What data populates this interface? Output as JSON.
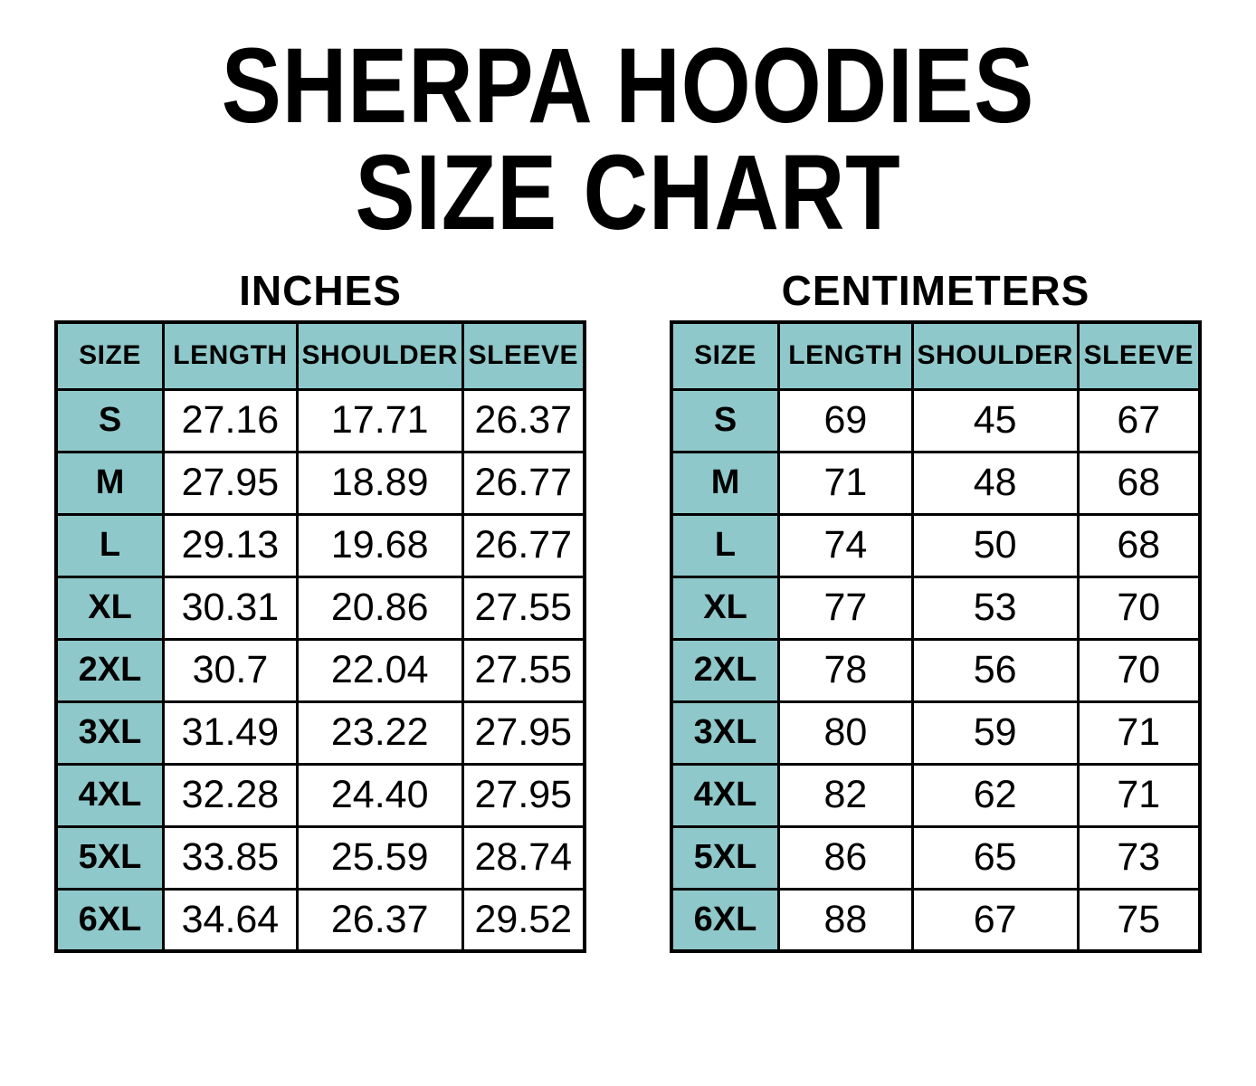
{
  "page_title": {
    "line1": "SHERPA HOODIES",
    "line2": "SIZE CHART"
  },
  "colors": {
    "header_fill": "#8FC8CA",
    "table_border": "#000000",
    "text": "#000000",
    "background": "#FFFFFF"
  },
  "chart_data": [
    {
      "type": "table",
      "title": "INCHES",
      "columns": [
        "SIZE",
        "LENGTH",
        "SHOULDER",
        "SLEEVE"
      ],
      "rows": [
        [
          "S",
          "27.16",
          "17.71",
          "26.37"
        ],
        [
          "M",
          "27.95",
          "18.89",
          "26.77"
        ],
        [
          "L",
          "29.13",
          "19.68",
          "26.77"
        ],
        [
          "XL",
          "30.31",
          "20.86",
          "27.55"
        ],
        [
          "2XL",
          "30.7",
          "22.04",
          "27.55"
        ],
        [
          "3XL",
          "31.49",
          "23.22",
          "27.95"
        ],
        [
          "4XL",
          "32.28",
          "24.40",
          "27.95"
        ],
        [
          "5XL",
          "33.85",
          "25.59",
          "28.74"
        ],
        [
          "6XL",
          "34.64",
          "26.37",
          "29.52"
        ]
      ]
    },
    {
      "type": "table",
      "title": "CENTIMETERS",
      "columns": [
        "SIZE",
        "LENGTH",
        "SHOULDER",
        "SLEEVE"
      ],
      "rows": [
        [
          "S",
          "69",
          "45",
          "67"
        ],
        [
          "M",
          "71",
          "48",
          "68"
        ],
        [
          "L",
          "74",
          "50",
          "68"
        ],
        [
          "XL",
          "77",
          "53",
          "70"
        ],
        [
          "2XL",
          "78",
          "56",
          "70"
        ],
        [
          "3XL",
          "80",
          "59",
          "71"
        ],
        [
          "4XL",
          "82",
          "62",
          "71"
        ],
        [
          "5XL",
          "86",
          "65",
          "73"
        ],
        [
          "6XL",
          "88",
          "67",
          "75"
        ]
      ]
    }
  ]
}
